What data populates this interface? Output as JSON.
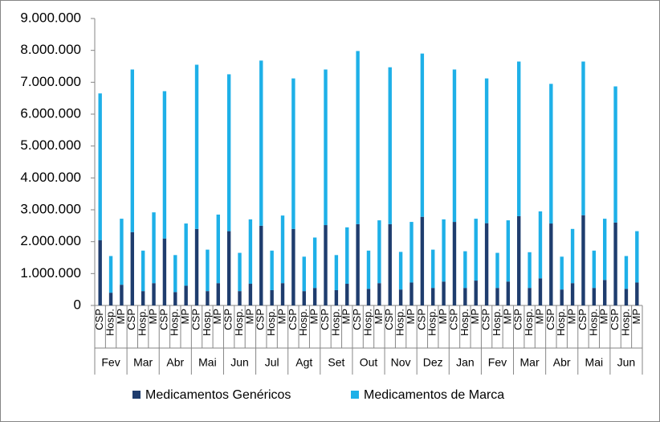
{
  "chart_data": {
    "type": "stacked_bar",
    "groups": [
      "Fev",
      "Mar",
      "Abr",
      "Mai",
      "Jun",
      "Jul",
      "Agt",
      "Set",
      "Out",
      "Nov",
      "Dez",
      "Jan",
      "Fev",
      "Mar",
      "Abr",
      "Mai",
      "Jun"
    ],
    "categories": [
      "CSP",
      "Hosp.",
      "MP",
      "CSP",
      "Hosp.",
      "MP",
      "CSP",
      "Hosp.",
      "MP",
      "CSP",
      "Hosp.",
      "MP",
      "CSP",
      "Hosp.",
      "MP",
      "CSP",
      "Hosp.",
      "MP",
      "CSP",
      "Hosp.",
      "MP",
      "CSP",
      "Hosp.",
      "MP",
      "CSP",
      "Hosp.",
      "MP",
      "CSP",
      "Hosp.",
      "MP",
      "CSP",
      "Hosp.",
      "MP",
      "CSP",
      "Hosp.",
      "MP",
      "CSP",
      "Hosp.",
      "MP",
      "CSP",
      "Hosp.",
      "MP",
      "CSP",
      "Hosp.",
      "MP",
      "CSP",
      "Hosp.",
      "MP",
      "CSP",
      "Hosp.",
      "MP"
    ],
    "series": [
      {
        "name": "Medicamentos Genéricos",
        "color": "#1f3d6e",
        "values": [
          2050000,
          400000,
          650000,
          2300000,
          450000,
          700000,
          2100000,
          420000,
          620000,
          2400000,
          450000,
          700000,
          2330000,
          450000,
          680000,
          2500000,
          480000,
          700000,
          2400000,
          450000,
          550000,
          2520000,
          480000,
          680000,
          2550000,
          520000,
          700000,
          2550000,
          500000,
          720000,
          2780000,
          550000,
          750000,
          2620000,
          550000,
          780000,
          2580000,
          550000,
          750000,
          2800000,
          550000,
          850000,
          2570000,
          500000,
          700000,
          2830000,
          550000,
          800000,
          2600000,
          520000,
          720000
        ]
      },
      {
        "name": "Medicamentos de Marca",
        "color": "#1eb0e8",
        "values": [
          4600000,
          1150000,
          2070000,
          5100000,
          1270000,
          2220000,
          4620000,
          1160000,
          1950000,
          5150000,
          1300000,
          2150000,
          4920000,
          1200000,
          2020000,
          5180000,
          1240000,
          2120000,
          4720000,
          1080000,
          1580000,
          4880000,
          1100000,
          1770000,
          5430000,
          1200000,
          1970000,
          4920000,
          1180000,
          1900000,
          5120000,
          1200000,
          1950000,
          4780000,
          1150000,
          1940000,
          4540000,
          1100000,
          1920000,
          4850000,
          1120000,
          2100000,
          4380000,
          1030000,
          1700000,
          4820000,
          1170000,
          1920000,
          4270000,
          1030000,
          1610000
        ]
      }
    ],
    "ylim": [
      0,
      9000000
    ],
    "yticks": [
      0,
      {
        "value": 1000000,
        "label": "1.000.000"
      },
      {
        "value": 2000000,
        "label": "2.000.000"
      },
      {
        "value": 3000000,
        "label": "3.000.000"
      },
      {
        "value": 4000000,
        "label": "4.000.000"
      },
      {
        "value": 5000000,
        "label": "5.000.000"
      },
      {
        "value": 6000000,
        "label": "6.000.000"
      },
      {
        "value": 7000000,
        "label": "7.000.000"
      },
      {
        "value": 8000000,
        "label": "8.000.000"
      },
      {
        "value": 9000000,
        "label": "9.000.000"
      }
    ],
    "legend": "bottom"
  }
}
